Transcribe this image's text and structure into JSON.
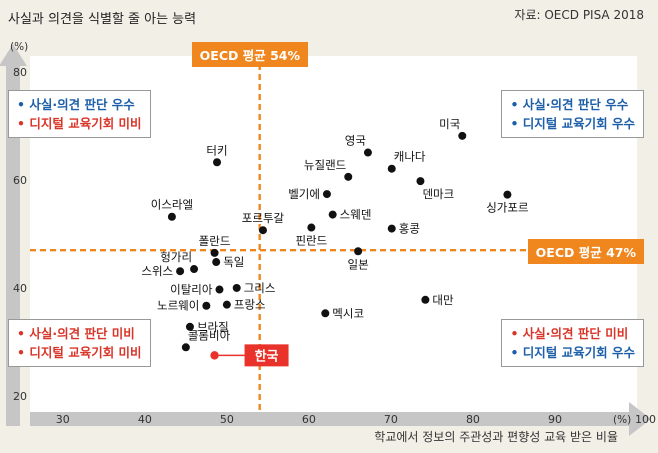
{
  "chart_data": {
    "type": "scatter",
    "title": "사실과 의견을 식별할 줄 아는 능력",
    "source": "자료: OECD PISA 2018",
    "xlabel": "학교에서 정보의 주관성과 편향성 교육 받은 비율",
    "x_unit": "(%)",
    "y_unit": "(%)",
    "xlim": [
      26,
      100
    ],
    "ylim": [
      17,
      83
    ],
    "x_ticks": [
      30,
      40,
      50,
      60,
      70,
      80,
      90,
      100
    ],
    "y_ticks": [
      20,
      40,
      60,
      80
    ],
    "averages": {
      "x": {
        "label": "OECD 평균 54%",
        "value": 54
      },
      "y": {
        "label": "OECD 평균 47%",
        "value": 47
      }
    },
    "quadrants": [
      {
        "pos": "top-left",
        "lines": [
          {
            "text": "• 사실·의견 판단 우수",
            "color": "#1d5fa8"
          },
          {
            "text": "• 디지털 교육기회 미비",
            "color": "#d9362a"
          }
        ]
      },
      {
        "pos": "top-right",
        "lines": [
          {
            "text": "• 사실·의견 판단 우수",
            "color": "#1d5fa8"
          },
          {
            "text": "• 디지털 교육기회 우수",
            "color": "#1d5fa8"
          }
        ]
      },
      {
        "pos": "bottom-left",
        "lines": [
          {
            "text": "• 사실·의견 판단 미비",
            "color": "#d9362a"
          },
          {
            "text": "• 디지털 교육기회 미비",
            "color": "#d9362a"
          }
        ]
      },
      {
        "pos": "bottom-right",
        "lines": [
          {
            "text": "• 사실·의견 판단 미비",
            "color": "#d9362a"
          },
          {
            "text": "• 디지털 교육기회 우수",
            "color": "#1d5fa8"
          }
        ]
      }
    ],
    "points": [
      {
        "label": "미국",
        "x": 78.7,
        "y": 68.2,
        "anchor": "above-left"
      },
      {
        "label": "영국",
        "x": 67.2,
        "y": 65.1,
        "anchor": "above-left"
      },
      {
        "label": "캐나다",
        "x": 70.1,
        "y": 62.1,
        "anchor": "above-right"
      },
      {
        "label": "뉴질랜드",
        "x": 64.8,
        "y": 60.6,
        "anchor": "above-left"
      },
      {
        "label": "덴마크",
        "x": 73.6,
        "y": 59.8,
        "anchor": "below-right"
      },
      {
        "label": "싱가포르",
        "x": 84.2,
        "y": 57.3,
        "anchor": "below-center"
      },
      {
        "label": "터키",
        "x": 48.8,
        "y": 63.3,
        "anchor": "above-center"
      },
      {
        "label": "벨기에",
        "x": 62.2,
        "y": 57.4,
        "anchor": "left"
      },
      {
        "label": "스웨덴",
        "x": 62.9,
        "y": 53.6,
        "anchor": "right"
      },
      {
        "label": "이스라엘",
        "x": 43.3,
        "y": 53.2,
        "anchor": "above-center"
      },
      {
        "label": "포르투갈",
        "x": 54.4,
        "y": 50.7,
        "anchor": "above-center"
      },
      {
        "label": "핀란드",
        "x": 60.3,
        "y": 51.2,
        "anchor": "below-center"
      },
      {
        "label": "홍콩",
        "x": 70.1,
        "y": 51.0,
        "anchor": "right"
      },
      {
        "label": "폴란드",
        "x": 48.5,
        "y": 46.5,
        "anchor": "above-center"
      },
      {
        "label": "일본",
        "x": 66.0,
        "y": 46.8,
        "anchor": "below-center"
      },
      {
        "label": "헝가리",
        "x": 46.0,
        "y": 43.5,
        "anchor": "above-left"
      },
      {
        "label": "독일",
        "x": 48.7,
        "y": 44.8,
        "anchor": "right"
      },
      {
        "label": "스위스",
        "x": 44.3,
        "y": 43.1,
        "anchor": "left"
      },
      {
        "label": "이탈리아",
        "x": 49.1,
        "y": 39.7,
        "anchor": "left"
      },
      {
        "label": "그리스",
        "x": 51.2,
        "y": 40.0,
        "anchor": "right"
      },
      {
        "label": "대만",
        "x": 74.2,
        "y": 37.8,
        "anchor": "right"
      },
      {
        "label": "노르웨이",
        "x": 47.5,
        "y": 36.7,
        "anchor": "left"
      },
      {
        "label": "프랑스",
        "x": 50.0,
        "y": 36.9,
        "anchor": "right"
      },
      {
        "label": "멕시코",
        "x": 62.0,
        "y": 35.3,
        "anchor": "right"
      },
      {
        "label": "브라질",
        "x": 45.5,
        "y": 32.8,
        "anchor": "right"
      },
      {
        "label": "콜롬비아",
        "x": 45.0,
        "y": 29.0,
        "anchor": "above-right"
      },
      {
        "label": "한국",
        "x": 48.5,
        "y": 27.5,
        "anchor": "highlight"
      }
    ],
    "grid": false,
    "colors": {
      "point": "#111111",
      "highlight": "#e8322a",
      "average": "#f0861e",
      "axis_arrow": "#c6c6c6"
    }
  }
}
